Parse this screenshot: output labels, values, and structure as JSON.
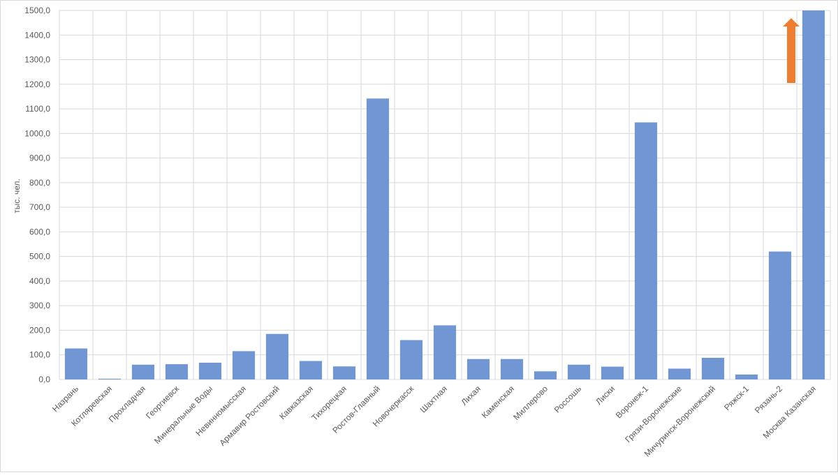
{
  "chart_data": {
    "type": "bar",
    "title": "",
    "xlabel": "",
    "ylabel": "тыс. чел.",
    "ylim": [
      0,
      1500
    ],
    "ytick_step": 100,
    "ytick_labels": [
      "0,0",
      "100,0",
      "200,0",
      "300,0",
      "400,0",
      "500,0",
      "600,0",
      "700,0",
      "800,0",
      "900,0",
      "1000,0",
      "1100,0",
      "1200,0",
      "1300,0",
      "1400,0",
      "1500,0"
    ],
    "grid": true,
    "legend": "none",
    "categories": [
      "Назрань",
      "Котляревская",
      "Прохладная",
      "Георгиевск",
      "Минеральные Воды",
      "Невинномысская",
      "Армавир Ростовский",
      "Кавказская",
      "Тихорецкая",
      "Ростов-Главный",
      "Новочеркасск",
      "Шахтная",
      "Лихая",
      "Каменская",
      "Миллерово",
      "Россошь",
      "Лиски",
      "Воронеж-1",
      "Грязи-Воронежские",
      "Мичуринск-Воронежский",
      "Ряжск-1",
      "Рязань-2",
      "Москва Казанская"
    ],
    "values": [
      126,
      3,
      60,
      62,
      68,
      115,
      185,
      75,
      53,
      1142,
      160,
      220,
      83,
      83,
      33,
      60,
      52,
      1045,
      44,
      88,
      20,
      520,
      1500
    ],
    "bar_color": "#7096d4",
    "annotation": {
      "type": "arrow-up",
      "category": "Москва Казанская",
      "color": "#ed7d31"
    }
  }
}
